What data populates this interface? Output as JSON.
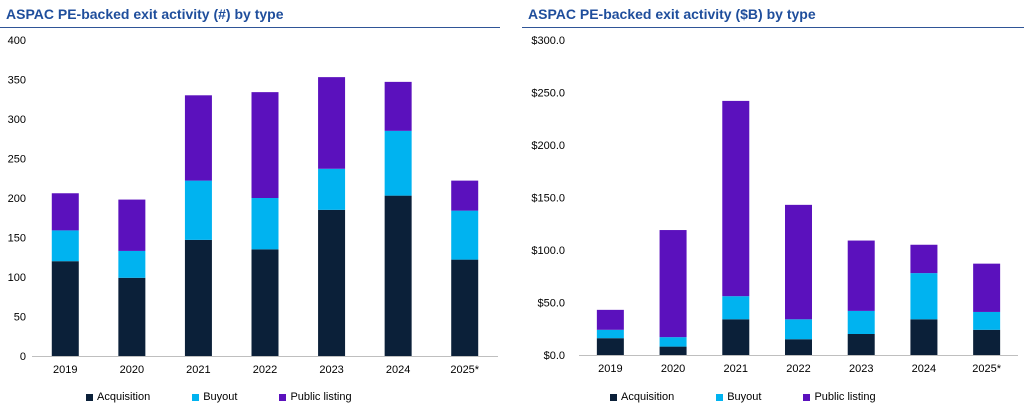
{
  "colors": {
    "acquisition": "#0b2039",
    "buyout": "#00b3f0",
    "public_listing": "#5b11bd",
    "title": "#1f4e9c",
    "rule": "#2f5597",
    "axis": "#bfbfbf"
  },
  "chart_data": [
    {
      "type": "bar",
      "stacked": true,
      "title": "ASPAC PE-backed exit activity (#) by type",
      "xlabel": "",
      "ylabel": "",
      "categories": [
        "2019",
        "2020",
        "2021",
        "2022",
        "2023",
        "2024",
        "2025*"
      ],
      "ylim": [
        0,
        400
      ],
      "yticks": [
        "0",
        "50",
        "100",
        "150",
        "200",
        "250",
        "300",
        "350",
        "400"
      ],
      "ytick_values": [
        0,
        50,
        100,
        150,
        200,
        250,
        300,
        350,
        400
      ],
      "series": [
        {
          "name": "Acquisition",
          "values": [
            120,
            99,
            147,
            135,
            185,
            203,
            122
          ]
        },
        {
          "name": "Buyout",
          "values": [
            39,
            34,
            75,
            65,
            52,
            82,
            62
          ]
        },
        {
          "name": "Public listing",
          "values": [
            47,
            65,
            108,
            134,
            116,
            62,
            38
          ]
        }
      ],
      "legend_position": "bottom",
      "grid": false
    },
    {
      "type": "bar",
      "stacked": true,
      "title": "ASPAC PE-backed exit activity ($B) by type",
      "xlabel": "",
      "ylabel": "",
      "categories": [
        "2019",
        "2020",
        "2021",
        "2022",
        "2023",
        "2024",
        "2025*"
      ],
      "ylim": [
        0,
        300
      ],
      "yticks": [
        "$0.0",
        "$50.0",
        "$100.0",
        "$150.0",
        "$200.0",
        "$250.0",
        "$300.0"
      ],
      "ytick_values": [
        0,
        50,
        100,
        150,
        200,
        250,
        300
      ],
      "series": [
        {
          "name": "Acquisition",
          "values": [
            16,
            8,
            34,
            15,
            20,
            34,
            24
          ]
        },
        {
          "name": "Buyout",
          "values": [
            8,
            9,
            22,
            19,
            22,
            44,
            17
          ]
        },
        {
          "name": "Public listing",
          "values": [
            19,
            102,
            186,
            109,
            67,
            27,
            46
          ]
        }
      ],
      "legend_position": "bottom",
      "grid": false
    }
  ],
  "legend": {
    "acquisition": "Acquisition",
    "buyout": "Buyout",
    "public_listing": "Public listing"
  }
}
